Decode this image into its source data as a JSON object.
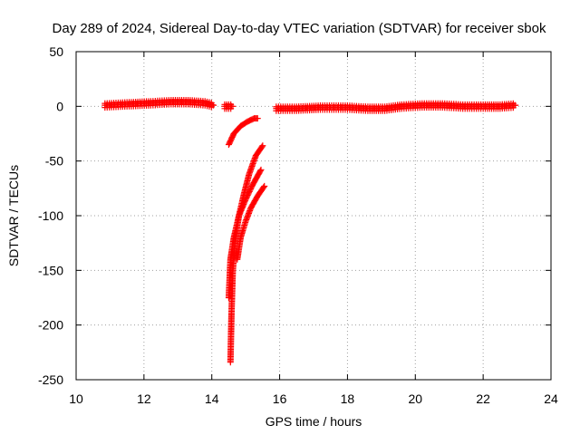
{
  "chart_data": {
    "type": "scatter",
    "title": "Day 289 of 2024, Sidereal Day-to-day VTEC variation (SDTVAR) for receiver sbok",
    "xlabel": "GPS time / hours",
    "ylabel": "SDTVAR / TECUs",
    "xlim": [
      10,
      24
    ],
    "ylim": [
      -250,
      50
    ],
    "xticks": [
      10,
      12,
      14,
      16,
      18,
      20,
      22,
      24
    ],
    "yticks": [
      -250,
      -200,
      -150,
      -100,
      -50,
      0,
      50
    ],
    "grid": true,
    "marker": "+",
    "color": "#ff0000",
    "series": [
      {
        "name": "baseline",
        "segments": [
          {
            "x": [
              10.85,
              11.5,
              12.2,
              12.8,
              13.3,
              13.8,
              14.05
            ],
            "y": [
              1,
              2,
              3,
              4,
              4,
              3,
              1
            ]
          },
          {
            "x": [
              14.38,
              14.62
            ],
            "y": [
              0,
              0
            ]
          },
          {
            "x": [
              15.9,
              16.5,
              17.2,
              18.0,
              18.6,
              19.1,
              19.6,
              20.2,
              20.8,
              21.4,
              22.0,
              22.5,
              22.95
            ],
            "y": [
              -2,
              -2,
              -1,
              -1,
              -2,
              -2,
              0,
              1,
              1,
              0,
              0,
              0,
              1
            ]
          }
        ]
      },
      {
        "name": "dip-1",
        "segments": [
          {
            "x": [
              14.5,
              14.65,
              14.85,
              15.05,
              15.25,
              15.35
            ],
            "y": [
              -35,
              -25,
              -18,
              -14,
              -11,
              -11
            ]
          }
        ]
      },
      {
        "name": "dip-2",
        "segments": [
          {
            "x": [
              14.55,
              14.58,
              14.62,
              14.7,
              14.8,
              14.95,
              15.1,
              15.3,
              15.5
            ],
            "y": [
              -234,
              -190,
              -150,
              -120,
              -100,
              -80,
              -62,
              -45,
              -36
            ]
          }
        ]
      },
      {
        "name": "dip-3",
        "segments": [
          {
            "x": [
              14.5,
              14.55,
              14.65,
              14.8,
              15.0,
              15.2,
              15.45
            ],
            "y": [
              -175,
              -140,
              -120,
              -100,
              -85,
              -72,
              -58
            ]
          }
        ]
      },
      {
        "name": "dip-4",
        "segments": [
          {
            "x": [
              14.75,
              14.85,
              15.0,
              15.15,
              15.35,
              15.55
            ],
            "y": [
              -140,
              -120,
              -105,
              -93,
              -82,
              -73
            ]
          }
        ]
      }
    ]
  }
}
